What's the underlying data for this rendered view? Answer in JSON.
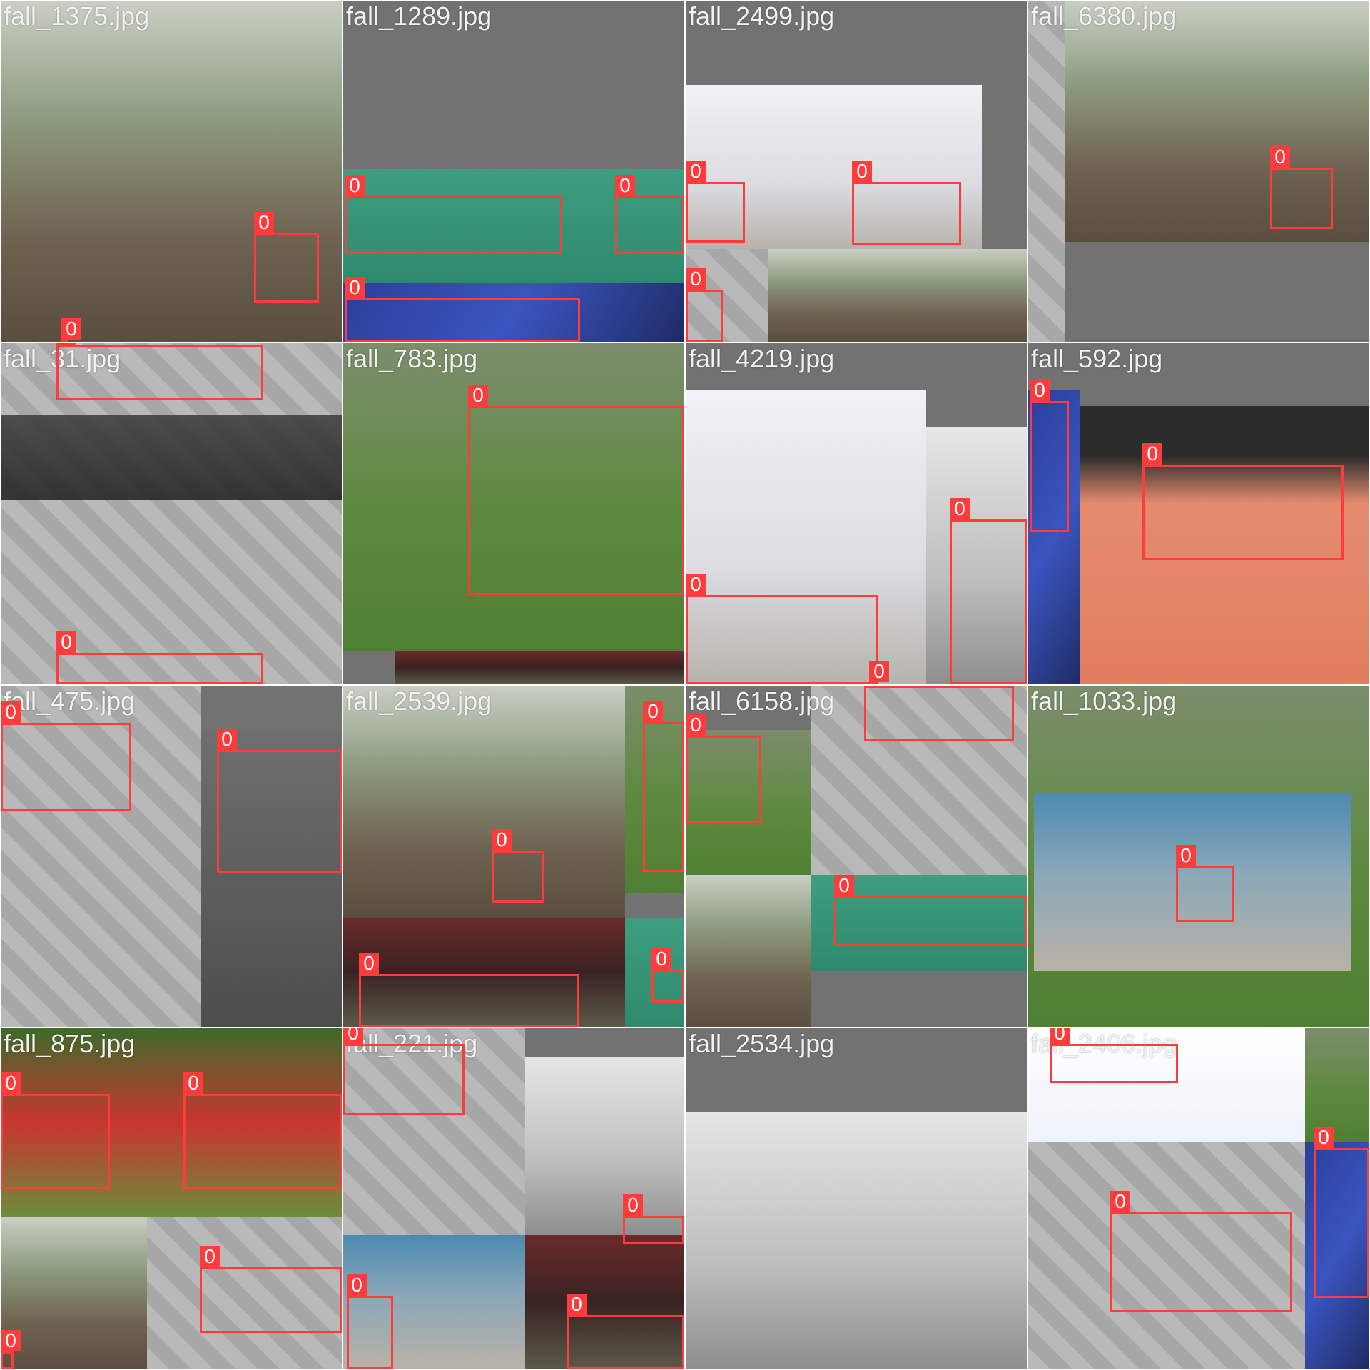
{
  "box_color": "#ff3b3b",
  "tiles": [
    {
      "filename": "fall_1375.jpg",
      "boxes": [
        {
          "label": "0"
        },
        {
          "label": "0"
        }
      ]
    },
    {
      "filename": "fall_1289.jpg",
      "boxes": [
        {
          "label": "0"
        },
        {
          "label": "0"
        },
        {
          "label": "0"
        }
      ]
    },
    {
      "filename": "fall_2499.jpg",
      "boxes": [
        {
          "label": "0"
        },
        {
          "label": "0"
        },
        {
          "label": "0"
        }
      ]
    },
    {
      "filename": "fall_6380.jpg",
      "boxes": [
        {
          "label": "0"
        }
      ]
    },
    {
      "filename": "fall_31.jpg",
      "boxes": [
        {
          "label": "0"
        },
        {
          "label": "0"
        }
      ]
    },
    {
      "filename": "fall_783.jpg",
      "boxes": [
        {
          "label": "0"
        }
      ]
    },
    {
      "filename": "fall_4219.jpg",
      "boxes": [
        {
          "label": "0"
        },
        {
          "label": "0"
        },
        {
          "label": "0"
        }
      ]
    },
    {
      "filename": "fall_592.jpg",
      "boxes": [
        {
          "label": "0"
        },
        {
          "label": "0"
        }
      ]
    },
    {
      "filename": "fall_475.jpg",
      "boxes": [
        {
          "label": "0"
        },
        {
          "label": "0"
        }
      ]
    },
    {
      "filename": "fall_2539.jpg",
      "boxes": [
        {
          "label": "0"
        },
        {
          "label": "0"
        },
        {
          "label": "0"
        },
        {
          "label": "0"
        },
        {
          "label": "0"
        }
      ]
    },
    {
      "filename": "fall_6158.jpg",
      "boxes": [
        {
          "label": "0"
        },
        {
          "label": "0"
        },
        {
          "label": "0"
        }
      ]
    },
    {
      "filename": "fall_1033.jpg",
      "boxes": [
        {
          "label": "0"
        }
      ]
    },
    {
      "filename": "fall_875.jpg",
      "boxes": [
        {
          "label": "0"
        },
        {
          "label": "0"
        },
        {
          "label": "0"
        },
        {
          "label": "0"
        }
      ]
    },
    {
      "filename": "fall_221.jpg",
      "boxes": [
        {
          "label": "0"
        },
        {
          "label": "0"
        },
        {
          "label": "0"
        },
        {
          "label": "0"
        }
      ]
    },
    {
      "filename": "fall_2534.jpg",
      "boxes": []
    },
    {
      "filename": "fall_2406.jpg",
      "boxes": [
        {
          "label": "0"
        },
        {
          "label": "0"
        },
        {
          "label": "0"
        }
      ]
    }
  ]
}
